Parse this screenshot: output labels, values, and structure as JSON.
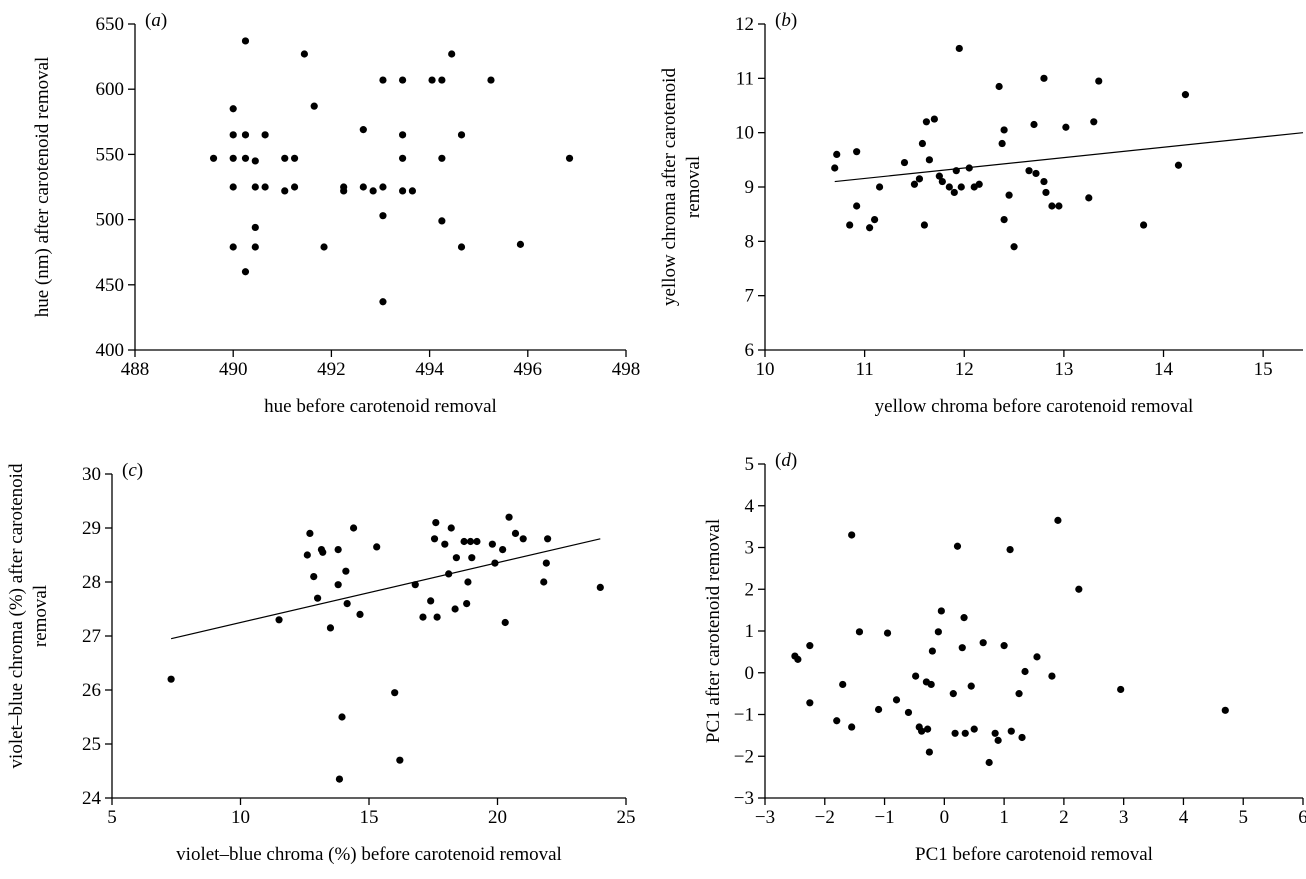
{
  "chart_data": [
    {
      "id": "a",
      "type": "scatter",
      "panel_label": "a",
      "xlabel": "hue before carotenoid removal",
      "ylabel": [
        "hue (nm) after carotenoid removal"
      ],
      "xlim": [
        488,
        498
      ],
      "ylim": [
        400,
        650
      ],
      "xticks": [
        488,
        490,
        492,
        494,
        496,
        498
      ],
      "yticks": [
        400,
        450,
        500,
        550,
        600,
        650
      ],
      "tick_labels_x": [
        "488",
        "490",
        "492",
        "494",
        "496",
        "498"
      ],
      "tick_labels_y": [
        "400",
        "450",
        "500",
        "550",
        "600",
        "650"
      ],
      "grid": false,
      "fit_line": null,
      "points": [
        [
          489.6,
          547
        ],
        [
          490.0,
          585
        ],
        [
          490.0,
          565
        ],
        [
          490.0,
          547
        ],
        [
          490.0,
          525
        ],
        [
          490.0,
          479
        ],
        [
          490.25,
          637
        ],
        [
          490.25,
          565
        ],
        [
          490.25,
          547
        ],
        [
          490.25,
          460
        ],
        [
          490.45,
          545
        ],
        [
          490.45,
          525
        ],
        [
          490.45,
          494
        ],
        [
          490.45,
          479
        ],
        [
          490.65,
          565
        ],
        [
          490.65,
          525
        ],
        [
          491.05,
          547
        ],
        [
          491.05,
          522
        ],
        [
          491.25,
          547
        ],
        [
          491.25,
          525
        ],
        [
          491.45,
          627
        ],
        [
          491.65,
          587
        ],
        [
          491.85,
          479
        ],
        [
          492.25,
          525
        ],
        [
          492.25,
          522
        ],
        [
          492.65,
          569
        ],
        [
          492.65,
          525
        ],
        [
          492.85,
          522
        ],
        [
          493.05,
          607
        ],
        [
          493.05,
          525
        ],
        [
          493.05,
          503
        ],
        [
          493.05,
          437
        ],
        [
          493.45,
          607
        ],
        [
          493.45,
          565
        ],
        [
          493.45,
          547
        ],
        [
          493.45,
          522
        ],
        [
          493.65,
          522
        ],
        [
          494.05,
          607
        ],
        [
          494.25,
          607
        ],
        [
          494.25,
          547
        ],
        [
          494.25,
          499
        ],
        [
          494.45,
          627
        ],
        [
          494.65,
          565
        ],
        [
          494.65,
          479
        ],
        [
          495.25,
          607
        ],
        [
          495.85,
          481
        ],
        [
          496.85,
          547
        ]
      ]
    },
    {
      "id": "b",
      "type": "scatter",
      "panel_label": "b",
      "xlabel": "yellow chroma before carotenoid removal",
      "ylabel": [
        "yellow chroma after carotenoid",
        "removal"
      ],
      "xlim": [
        10,
        15.4
      ],
      "ylim": [
        6,
        12
      ],
      "xticks": [
        10,
        11,
        12,
        13,
        14,
        15
      ],
      "yticks": [
        6,
        7,
        8,
        9,
        10,
        11,
        12
      ],
      "tick_labels_x": [
        "10",
        "11",
        "12",
        "13",
        "14",
        "15"
      ],
      "tick_labels_y": [
        "6",
        "7",
        "8",
        "9",
        "10",
        "11",
        "12"
      ],
      "grid": false,
      "fit_line": [
        [
          10.7,
          9.1
        ],
        [
          15.4,
          10.0
        ]
      ],
      "points": [
        [
          10.7,
          9.35
        ],
        [
          10.72,
          9.6
        ],
        [
          10.85,
          8.3
        ],
        [
          10.92,
          9.65
        ],
        [
          10.92,
          8.65
        ],
        [
          11.05,
          8.25
        ],
        [
          11.1,
          8.4
        ],
        [
          11.15,
          9.0
        ],
        [
          11.4,
          9.45
        ],
        [
          11.5,
          9.05
        ],
        [
          11.55,
          9.15
        ],
        [
          11.58,
          9.8
        ],
        [
          11.6,
          8.3
        ],
        [
          11.62,
          10.2
        ],
        [
          11.65,
          9.5
        ],
        [
          11.7,
          10.25
        ],
        [
          11.75,
          9.2
        ],
        [
          11.78,
          9.1
        ],
        [
          11.85,
          9.0
        ],
        [
          11.9,
          8.9
        ],
        [
          11.92,
          9.3
        ],
        [
          11.95,
          11.55
        ],
        [
          11.97,
          9.0
        ],
        [
          12.05,
          9.35
        ],
        [
          12.1,
          9.0
        ],
        [
          12.15,
          9.05
        ],
        [
          12.35,
          10.85
        ],
        [
          12.38,
          9.8
        ],
        [
          12.4,
          10.05
        ],
        [
          12.4,
          8.4
        ],
        [
          12.45,
          8.85
        ],
        [
          12.5,
          7.9
        ],
        [
          12.65,
          9.3
        ],
        [
          12.7,
          10.15
        ],
        [
          12.72,
          9.25
        ],
        [
          12.8,
          11.0
        ],
        [
          12.8,
          9.1
        ],
        [
          12.82,
          8.9
        ],
        [
          12.88,
          8.65
        ],
        [
          12.95,
          8.65
        ],
        [
          13.02,
          10.1
        ],
        [
          13.25,
          8.8
        ],
        [
          13.3,
          10.2
        ],
        [
          13.35,
          10.95
        ],
        [
          13.8,
          8.3
        ],
        [
          14.15,
          9.4
        ],
        [
          14.22,
          10.7
        ]
      ]
    },
    {
      "id": "c",
      "type": "scatter",
      "panel_label": "c",
      "xlabel": "violet–blue chroma (%) before carotenoid removal",
      "ylabel": [
        "violet–blue chroma (%) after carotenoid",
        "removal"
      ],
      "xlim": [
        5,
        25
      ],
      "ylim": [
        24,
        30
      ],
      "xticks": [
        5,
        10,
        15,
        20,
        25
      ],
      "yticks": [
        24,
        25,
        26,
        27,
        28,
        29,
        30
      ],
      "tick_labels_x": [
        "5",
        "10",
        "15",
        "20",
        "25"
      ],
      "tick_labels_y": [
        "24",
        "25",
        "26",
        "27",
        "28",
        "29",
        "30"
      ],
      "grid": false,
      "fit_line": [
        [
          7.3,
          26.95
        ],
        [
          24.0,
          28.8
        ]
      ],
      "points": [
        [
          7.3,
          26.2
        ],
        [
          11.5,
          27.3
        ],
        [
          12.6,
          28.5
        ],
        [
          12.7,
          28.9
        ],
        [
          12.85,
          28.1
        ],
        [
          13.0,
          27.7
        ],
        [
          13.15,
          28.6
        ],
        [
          13.2,
          28.55
        ],
        [
          13.5,
          27.15
        ],
        [
          13.8,
          27.95
        ],
        [
          13.8,
          28.6
        ],
        [
          13.85,
          24.35
        ],
        [
          13.95,
          25.5
        ],
        [
          14.1,
          28.2
        ],
        [
          14.15,
          27.6
        ],
        [
          14.4,
          29.0
        ],
        [
          14.65,
          27.4
        ],
        [
          15.3,
          28.65
        ],
        [
          16.0,
          25.95
        ],
        [
          16.2,
          24.7
        ],
        [
          16.8,
          27.95
        ],
        [
          17.1,
          27.35
        ],
        [
          17.4,
          27.65
        ],
        [
          17.55,
          28.8
        ],
        [
          17.6,
          29.1
        ],
        [
          17.65,
          27.35
        ],
        [
          17.95,
          28.7
        ],
        [
          18.1,
          28.15
        ],
        [
          18.2,
          29.0
        ],
        [
          18.35,
          27.5
        ],
        [
          18.4,
          28.45
        ],
        [
          18.7,
          28.75
        ],
        [
          18.8,
          27.6
        ],
        [
          18.85,
          28.0
        ],
        [
          18.95,
          28.75
        ],
        [
          19.0,
          28.45
        ],
        [
          19.2,
          28.75
        ],
        [
          19.8,
          28.7
        ],
        [
          19.9,
          28.35
        ],
        [
          20.2,
          28.6
        ],
        [
          20.3,
          27.25
        ],
        [
          20.45,
          29.2
        ],
        [
          20.7,
          28.9
        ],
        [
          21.0,
          28.8
        ],
        [
          21.8,
          28.0
        ],
        [
          21.9,
          28.35
        ],
        [
          21.95,
          28.8
        ],
        [
          24.0,
          27.9
        ]
      ]
    },
    {
      "id": "d",
      "type": "scatter",
      "panel_label": "d",
      "xlabel": "PC1 before carotenoid removal",
      "ylabel": [
        "PC1 after carotenoid removal"
      ],
      "xlim": [
        -3,
        6
      ],
      "ylim": [
        -3,
        5
      ],
      "xticks": [
        -3,
        -2,
        -1,
        0,
        1,
        2,
        3,
        4,
        5,
        6
      ],
      "yticks": [
        -3,
        -2,
        -1,
        0,
        1,
        2,
        3,
        4,
        5
      ],
      "tick_labels_x": [
        "−3",
        "−2",
        "−1",
        "0",
        "1",
        "2",
        "3",
        "4",
        "5",
        "6"
      ],
      "tick_labels_y": [
        "−3",
        "−2",
        "−1",
        "0",
        "1",
        "2",
        "3",
        "4",
        "5"
      ],
      "grid": false,
      "fit_line": null,
      "points": [
        [
          -2.5,
          0.4
        ],
        [
          -2.45,
          0.32
        ],
        [
          -2.25,
          0.65
        ],
        [
          -2.25,
          -0.72
        ],
        [
          -1.8,
          -1.15
        ],
        [
          -1.7,
          -0.28
        ],
        [
          -1.55,
          -1.3
        ],
        [
          -1.55,
          3.3
        ],
        [
          -1.42,
          0.98
        ],
        [
          -1.1,
          -0.88
        ],
        [
          -0.95,
          0.95
        ],
        [
          -0.8,
          -0.65
        ],
        [
          -0.6,
          -0.95
        ],
        [
          -0.48,
          -0.08
        ],
        [
          -0.42,
          -1.3
        ],
        [
          -0.38,
          -1.4
        ],
        [
          -0.3,
          -0.22
        ],
        [
          -0.28,
          -1.35
        ],
        [
          -0.25,
          -1.9
        ],
        [
          -0.22,
          -0.28
        ],
        [
          -0.2,
          0.52
        ],
        [
          -0.1,
          0.98
        ],
        [
          -0.05,
          1.48
        ],
        [
          0.15,
          -0.5
        ],
        [
          0.18,
          -1.45
        ],
        [
          0.22,
          3.03
        ],
        [
          0.3,
          0.6
        ],
        [
          0.33,
          1.32
        ],
        [
          0.35,
          -1.45
        ],
        [
          0.45,
          -0.32
        ],
        [
          0.5,
          -1.35
        ],
        [
          0.65,
          0.72
        ],
        [
          0.75,
          -2.15
        ],
        [
          0.85,
          -1.45
        ],
        [
          0.9,
          -1.62
        ],
        [
          1.0,
          0.65
        ],
        [
          1.1,
          2.95
        ],
        [
          1.12,
          -1.4
        ],
        [
          1.25,
          -0.5
        ],
        [
          1.3,
          -1.55
        ],
        [
          1.35,
          0.03
        ],
        [
          1.55,
          0.38
        ],
        [
          1.8,
          -0.08
        ],
        [
          1.9,
          3.65
        ],
        [
          2.25,
          2.0
        ],
        [
          2.95,
          -0.4
        ],
        [
          4.7,
          -0.9
        ]
      ]
    }
  ]
}
